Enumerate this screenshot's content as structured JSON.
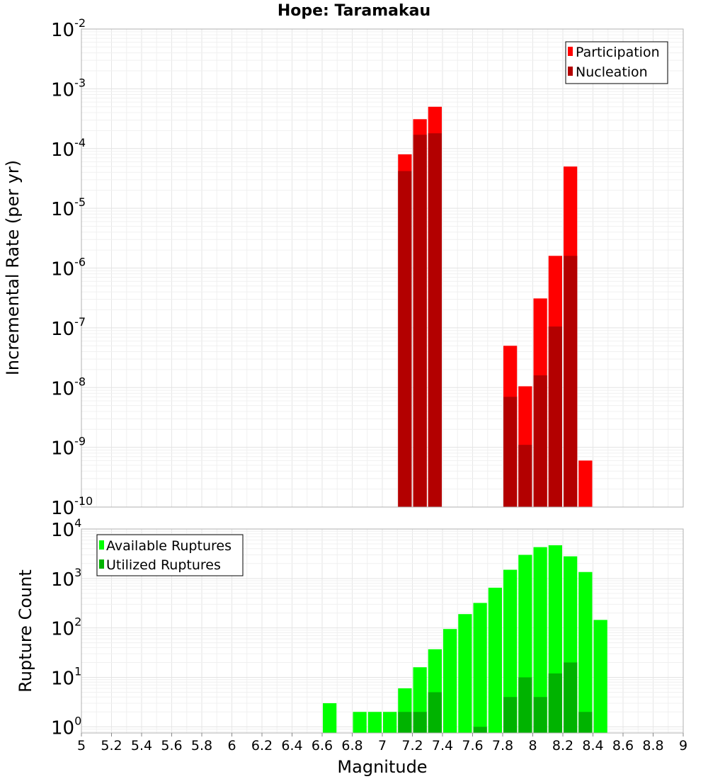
{
  "chart_data": [
    {
      "type": "bar",
      "title": "Hope: Taramakau",
      "ylabel": "Incremental Rate (per yr)",
      "yscale": "log",
      "ylim": [
        1e-10,
        0.01
      ],
      "xlim": [
        5,
        9
      ],
      "legend": {
        "placement": "top-right",
        "entries": [
          "Participation",
          "Nucleation"
        ]
      },
      "series": [
        {
          "name": "Participation",
          "color": "#ff0000",
          "points": [
            [
              7.15,
              8e-05
            ],
            [
              7.25,
              0.00031
            ],
            [
              7.35,
              0.0005
            ],
            [
              7.85,
              5e-08
            ],
            [
              7.95,
              1.05e-08
            ],
            [
              8.05,
              3.1e-07
            ],
            [
              8.15,
              1.6e-06
            ],
            [
              8.25,
              5e-05
            ],
            [
              8.35,
              6e-10
            ]
          ]
        },
        {
          "name": "Nucleation",
          "color": "#b30000",
          "points": [
            [
              7.15,
              4.2e-05
            ],
            [
              7.25,
              0.00017
            ],
            [
              7.35,
              0.00018
            ],
            [
              7.85,
              7e-09
            ],
            [
              7.95,
              1.1e-09
            ],
            [
              8.05,
              1.6e-08
            ],
            [
              8.15,
              1.05e-07
            ],
            [
              8.25,
              1.6e-06
            ]
          ]
        }
      ]
    },
    {
      "type": "bar",
      "xlabel": "Magnitude",
      "ylabel": "Rupture Count",
      "yscale": "log",
      "ylim": [
        0.75,
        10000
      ],
      "xlim": [
        5,
        9
      ],
      "legend": {
        "placement": "top-left",
        "entries": [
          "Available Ruptures",
          "Utilized Ruptures"
        ]
      },
      "series": [
        {
          "name": "Available Ruptures",
          "color": "#00ff00",
          "points": [
            [
              6.65,
              3
            ],
            [
              6.85,
              2
            ],
            [
              6.95,
              2
            ],
            [
              7.05,
              2
            ],
            [
              7.15,
              6
            ],
            [
              7.25,
              16
            ],
            [
              7.35,
              37
            ],
            [
              7.45,
              95
            ],
            [
              7.55,
              190
            ],
            [
              7.65,
              320
            ],
            [
              7.75,
              650
            ],
            [
              7.85,
              1500
            ],
            [
              7.95,
              3000
            ],
            [
              8.05,
              4300
            ],
            [
              8.15,
              4700
            ],
            [
              8.25,
              2800
            ],
            [
              8.35,
              1350
            ],
            [
              8.45,
              145
            ]
          ]
        },
        {
          "name": "Utilized Ruptures",
          "color": "#00b300",
          "points": [
            [
              7.15,
              2
            ],
            [
              7.25,
              2
            ],
            [
              7.35,
              5
            ],
            [
              7.65,
              1
            ],
            [
              7.85,
              4
            ],
            [
              7.95,
              10
            ],
            [
              8.05,
              4
            ],
            [
              8.15,
              12
            ],
            [
              8.25,
              20
            ],
            [
              8.35,
              2
            ]
          ]
        }
      ]
    }
  ],
  "x_ticks": [
    "5",
    "5.2",
    "5.4",
    "5.6",
    "5.8",
    "6",
    "6.2",
    "6.4",
    "6.6",
    "6.8",
    "7",
    "7.2",
    "7.4",
    "7.6",
    "7.8",
    "8",
    "8.2",
    "8.4",
    "8.6",
    "8.8",
    "9"
  ],
  "top_y_exponents": [
    "-2",
    "-3",
    "-4",
    "-5",
    "-6",
    "-7",
    "-8",
    "-9",
    "-10"
  ],
  "bottom_y_exponents": [
    "4",
    "3",
    "2",
    "1",
    "0"
  ],
  "y_tick_base": "10"
}
